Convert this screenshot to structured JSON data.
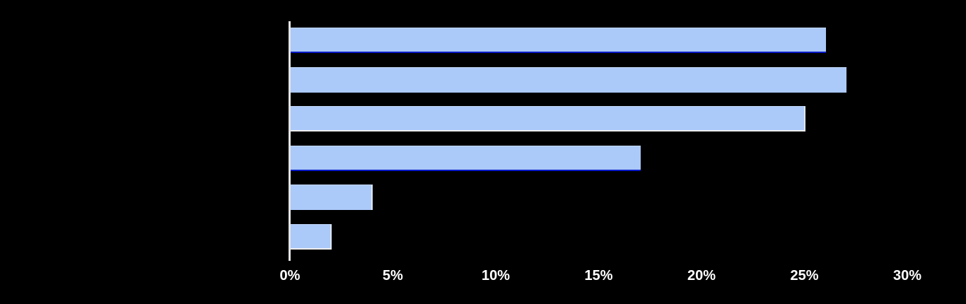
{
  "background_color": "#000000",
  "chart_data": {
    "type": "bar",
    "orientation": "horizontal",
    "title": "",
    "xlabel": "",
    "ylabel": "",
    "grid": false,
    "legend": "none",
    "xlim": [
      0,
      30
    ],
    "categories": [
      "",
      "",
      "",
      "",
      "",
      ""
    ],
    "values": [
      26,
      27,
      25,
      17,
      4,
      2
    ],
    "unit": "%",
    "bars": [
      {
        "value": 26,
        "bottom_edge": "#0019C6",
        "right_edge": null
      },
      {
        "value": 27,
        "bottom_edge": null,
        "right_edge": null
      },
      {
        "value": 25,
        "bottom_edge": "#EDEDED",
        "right_edge": "#DDE7F7"
      },
      {
        "value": 17,
        "bottom_edge": "#0019C6",
        "right_edge": null
      },
      {
        "value": 4,
        "bottom_edge": null,
        "right_edge": "#DDE7F7"
      },
      {
        "value": 2,
        "bottom_edge": "#EDEDED",
        "right_edge": "#DDE7F7"
      }
    ],
    "x_ticks": [
      {
        "value": 0,
        "label": "0%"
      },
      {
        "value": 5,
        "label": "5%"
      },
      {
        "value": 10,
        "label": "10%"
      },
      {
        "value": 15,
        "label": "15%"
      },
      {
        "value": 20,
        "label": "20%"
      },
      {
        "value": 25,
        "label": "25%"
      },
      {
        "value": 30,
        "label": "30%"
      }
    ],
    "colors": {
      "bar_fill": "#ABC9F9",
      "axis_line": "#E4E4E4",
      "tick_label": "#FFFFFF",
      "accent_dark_blue": "#0019C6",
      "accent_light_edge": "#EDEDED"
    }
  }
}
